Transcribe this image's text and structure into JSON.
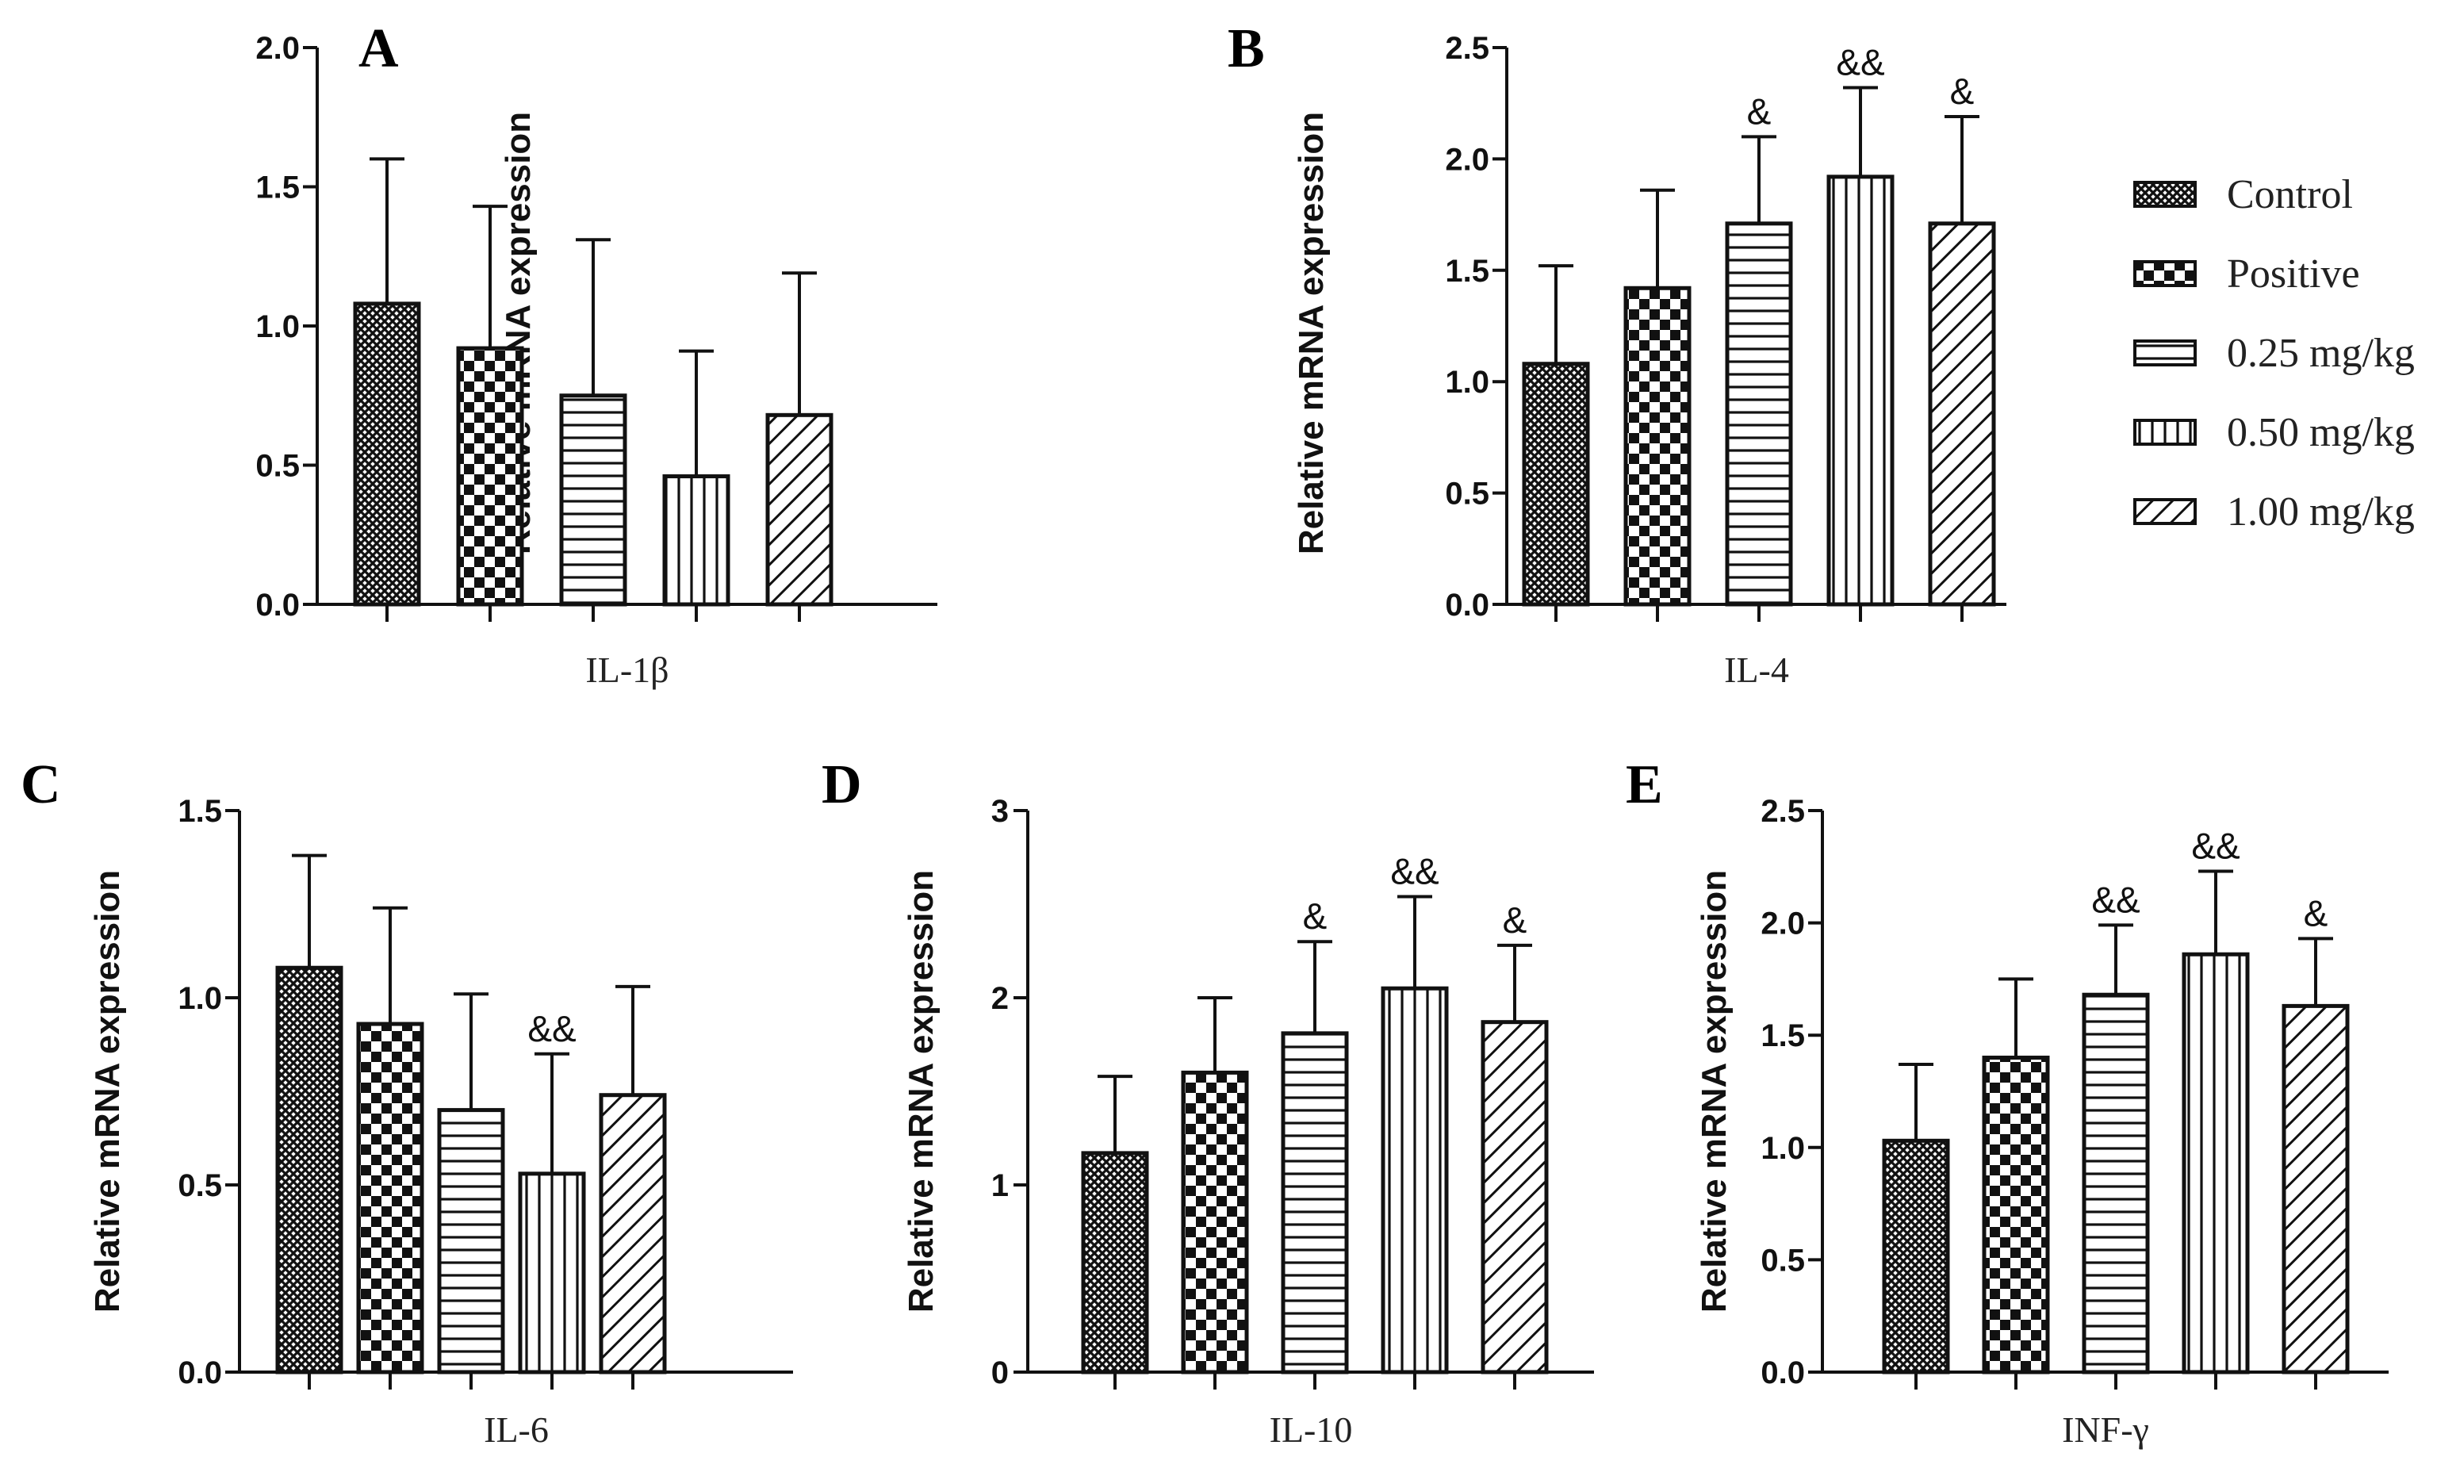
{
  "figure": {
    "groups": [
      "Control",
      "Positive",
      "0.25 mg/kg",
      "0.50 mg/kg",
      "1.00 mg/kg"
    ]
  },
  "colors": {
    "stroke": "#111111",
    "background": "#ffffff"
  },
  "legend": {
    "items": [
      {
        "label": "Control",
        "pattern": "fine-crosshatch"
      },
      {
        "label": "Positive",
        "pattern": "checker"
      },
      {
        "label": "0.25 mg/kg",
        "pattern": "horizontal-lines"
      },
      {
        "label": "0.50 mg/kg",
        "pattern": "vertical-lines"
      },
      {
        "label": "1.00 mg/kg",
        "pattern": "diagonal-lines"
      }
    ]
  },
  "chart_data": [
    {
      "panel": "A",
      "type": "bar",
      "title": "",
      "xlabel": "IL-1β",
      "ylabel": "Relative mRNA expression",
      "categories": [
        "Control",
        "Positive",
        "0.25 mg/kg",
        "0.50 mg/kg",
        "1.00 mg/kg"
      ],
      "values": [
        1.08,
        0.92,
        0.75,
        0.46,
        0.68
      ],
      "errors": [
        0.52,
        0.51,
        0.56,
        0.45,
        0.51
      ],
      "significance": [
        "",
        "",
        "",
        "",
        ""
      ],
      "ylim": [
        0,
        2.0
      ],
      "yticks": [
        0.0,
        0.5,
        1.0,
        1.5,
        2.0
      ],
      "ytick_labels": [
        "0.0",
        "0.5",
        "1.0",
        "1.5",
        "2.0"
      ]
    },
    {
      "panel": "B",
      "type": "bar",
      "title": "",
      "xlabel": "IL-4",
      "ylabel": "Relative mRNA expression",
      "categories": [
        "Control",
        "Positive",
        "0.25 mg/kg",
        "0.50 mg/kg",
        "1.00 mg/kg"
      ],
      "values": [
        1.08,
        1.42,
        1.71,
        1.92,
        1.71
      ],
      "errors": [
        0.44,
        0.44,
        0.39,
        0.4,
        0.48
      ],
      "significance": [
        "",
        "",
        "&",
        "&&",
        "&"
      ],
      "ylim": [
        0,
        2.5
      ],
      "yticks": [
        0.0,
        0.5,
        1.0,
        1.5,
        2.0,
        2.5
      ],
      "ytick_labels": [
        "0.0",
        "0.5",
        "1.0",
        "1.5",
        "2.0",
        "2.5"
      ]
    },
    {
      "panel": "C",
      "type": "bar",
      "title": "",
      "xlabel": "IL-6",
      "ylabel": "Relative mRNA expression",
      "categories": [
        "Control",
        "Positive",
        "0.25 mg/kg",
        "0.50 mg/kg",
        "1.00 mg/kg"
      ],
      "values": [
        1.08,
        0.93,
        0.7,
        0.53,
        0.74
      ],
      "errors": [
        0.3,
        0.31,
        0.31,
        0.32,
        0.29
      ],
      "significance": [
        "",
        "",
        "",
        "&&",
        ""
      ],
      "ylim": [
        0,
        1.5
      ],
      "yticks": [
        0.0,
        0.5,
        1.0,
        1.5
      ],
      "ytick_labels": [
        "0.0",
        "0.5",
        "1.0",
        "1.5"
      ]
    },
    {
      "panel": "D",
      "type": "bar",
      "title": "",
      "xlabel": "IL-10",
      "ylabel": "Relative mRNA expression",
      "categories": [
        "Control",
        "Positive",
        "0.25 mg/kg",
        "0.50 mg/kg",
        "1.00 mg/kg"
      ],
      "values": [
        1.17,
        1.6,
        1.81,
        2.05,
        1.87
      ],
      "errors": [
        0.41,
        0.4,
        0.49,
        0.49,
        0.41
      ],
      "significance": [
        "",
        "",
        "&",
        "&&",
        "&"
      ],
      "ylim": [
        0,
        3
      ],
      "yticks": [
        0,
        1,
        2,
        3
      ],
      "ytick_labels": [
        "0",
        "1",
        "2",
        "3"
      ]
    },
    {
      "panel": "E",
      "type": "bar",
      "title": "",
      "xlabel": "INF-γ",
      "ylabel": "Relative mRNA expression",
      "categories": [
        "Control",
        "Positive",
        "0.25 mg/kg",
        "0.50 mg/kg",
        "1.00 mg/kg"
      ],
      "values": [
        1.03,
        1.4,
        1.68,
        1.86,
        1.63
      ],
      "errors": [
        0.34,
        0.35,
        0.31,
        0.37,
        0.3
      ],
      "significance": [
        "",
        "",
        "&&",
        "&&",
        "&"
      ],
      "ylim": [
        0,
        2.5
      ],
      "yticks": [
        0.0,
        0.5,
        1.0,
        1.5,
        2.0,
        2.5
      ],
      "ytick_labels": [
        "0.0",
        "0.5",
        "1.0",
        "1.5",
        "2.0",
        "2.5"
      ]
    }
  ]
}
